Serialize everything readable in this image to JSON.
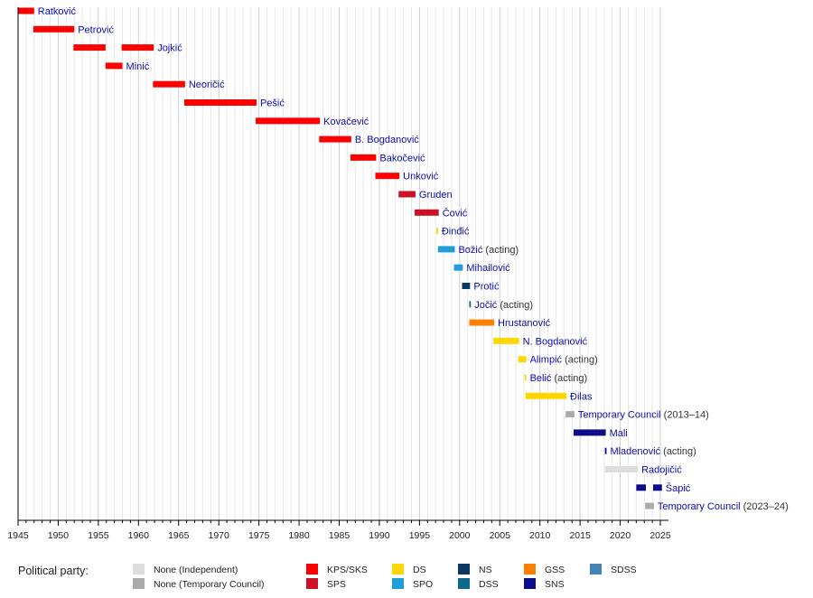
{
  "chart_data": {
    "type": "timeline",
    "xlim": [
      1945,
      2025
    ],
    "xticks": [
      1945,
      1950,
      1955,
      1960,
      1965,
      1970,
      1975,
      1980,
      1985,
      1990,
      1995,
      2000,
      2005,
      2010,
      2015,
      2020,
      2025
    ],
    "grid": "vertical, yearly",
    "legend_title": "Political party:",
    "legend_placement": "bottom",
    "parties": [
      {
        "key": "ind",
        "name": "None (Independent)",
        "color": "#DDDDDD"
      },
      {
        "key": "tc",
        "name": "None (Temporary Council)",
        "color": "#AAAAAA"
      },
      {
        "key": "kps",
        "name": "KPS/SKS",
        "color": "#FF0000"
      },
      {
        "key": "sps",
        "name": "SPS",
        "color": "#CC1025"
      },
      {
        "key": "ds",
        "name": "DS",
        "color": "#FFD700"
      },
      {
        "key": "spo",
        "name": "SPO",
        "color": "#1E9FD8"
      },
      {
        "key": "ns",
        "name": "NS",
        "color": "#0B3861"
      },
      {
        "key": "dss",
        "name": "DSS",
        "color": "#0E6A8C"
      },
      {
        "key": "gss",
        "name": "GSS",
        "color": "#FF8000"
      },
      {
        "key": "sns",
        "name": "SNS",
        "color": "#0C0C8C"
      },
      {
        "key": "sdss",
        "name": "SDSS",
        "color": "#4682B4"
      }
    ],
    "rows": [
      {
        "name": "Ratković",
        "suffix": "",
        "party": "kps",
        "terms": [
          [
            1945.0,
            1947.0
          ]
        ]
      },
      {
        "name": "Petrović",
        "suffix": "",
        "party": "kps",
        "terms": [
          [
            1946.9,
            1952.0
          ]
        ]
      },
      {
        "name": "Jojkić",
        "suffix": "",
        "party": "kps",
        "terms": [
          [
            1951.9,
            1955.9
          ],
          [
            1957.9,
            1961.9
          ]
        ]
      },
      {
        "name": "Minić",
        "suffix": "",
        "party": "kps",
        "terms": [
          [
            1955.9,
            1958.0
          ]
        ]
      },
      {
        "name": "Neoričić",
        "suffix": "",
        "party": "kps",
        "terms": [
          [
            1961.8,
            1965.8
          ]
        ]
      },
      {
        "name": "Pešić",
        "suffix": "",
        "party": "kps",
        "terms": [
          [
            1965.7,
            1974.7
          ]
        ]
      },
      {
        "name": "Kovačević",
        "suffix": "",
        "party": "kps",
        "terms": [
          [
            1974.6,
            1982.6
          ]
        ]
      },
      {
        "name": "B. Bogdanović",
        "suffix": "",
        "party": "kps",
        "terms": [
          [
            1982.5,
            1986.5
          ]
        ]
      },
      {
        "name": "Bakočević",
        "suffix": "",
        "party": "kps",
        "terms": [
          [
            1986.4,
            1989.6
          ]
        ]
      },
      {
        "name": "Unković",
        "suffix": "",
        "party": "kps",
        "terms": [
          [
            1989.5,
            1992.5
          ]
        ]
      },
      {
        "name": "Gruden",
        "suffix": "",
        "party": "sps",
        "terms": [
          [
            1992.4,
            1994.5
          ]
        ]
      },
      {
        "name": "Čović",
        "suffix": "",
        "party": "sps",
        "terms": [
          [
            1994.4,
            1997.4
          ]
        ]
      },
      {
        "name": "Đinđić",
        "suffix": "",
        "party": "ds",
        "terms": [
          [
            1997.1,
            1997.3
          ]
        ]
      },
      {
        "name": "Božić",
        "suffix": " (acting)",
        "party": "spo",
        "terms": [
          [
            1997.3,
            1999.4
          ]
        ]
      },
      {
        "name": "Mihailović",
        "suffix": "",
        "party": "spo",
        "terms": [
          [
            1999.3,
            2000.4
          ]
        ]
      },
      {
        "name": "Protić",
        "suffix": "",
        "party": "ns",
        "terms": [
          [
            2000.3,
            2001.3
          ]
        ]
      },
      {
        "name": "Jočić",
        "suffix": " (acting)",
        "party": "dss",
        "terms": [
          [
            2001.2,
            2001.4
          ]
        ]
      },
      {
        "name": "Hrustanović",
        "suffix": "",
        "party": "gss",
        "terms": [
          [
            2001.2,
            2004.3
          ]
        ]
      },
      {
        "name": "N. Bogdanović",
        "suffix": "",
        "party": "ds",
        "terms": [
          [
            2004.2,
            2007.4
          ]
        ]
      },
      {
        "name": "Alimpić",
        "suffix": " (acting)",
        "party": "ds",
        "terms": [
          [
            2007.3,
            2008.3
          ]
        ]
      },
      {
        "name": "Belić",
        "suffix": " (acting)",
        "party": "ds",
        "terms": [
          [
            2008.1,
            2008.3
          ]
        ]
      },
      {
        "name": "Đilas",
        "suffix": "",
        "party": "ds",
        "terms": [
          [
            2008.2,
            2013.3
          ]
        ]
      },
      {
        "name": "Temporary Council",
        "suffix": " (2013–14)",
        "party": "tc",
        "terms": [
          [
            2013.2,
            2014.3
          ]
        ]
      },
      {
        "name": "Mali",
        "suffix": "",
        "party": "sns",
        "terms": [
          [
            2014.2,
            2018.2
          ]
        ]
      },
      {
        "name": "Mladenović",
        "suffix": " (acting)",
        "party": "sns",
        "terms": [
          [
            2018.1,
            2018.3
          ]
        ]
      },
      {
        "name": "Radojičić",
        "suffix": "",
        "party": "ind",
        "terms": [
          [
            2018.1,
            2022.2
          ]
        ]
      },
      {
        "name": "Šapić",
        "suffix": "",
        "party": "sns",
        "terms": [
          [
            2022.0,
            2023.2
          ],
          [
            2024.1,
            2025.2
          ]
        ]
      },
      {
        "name": "Temporary Council",
        "suffix": " (2023–24)",
        "party": "tc",
        "terms": [
          [
            2023.1,
            2024.2
          ]
        ]
      }
    ]
  }
}
